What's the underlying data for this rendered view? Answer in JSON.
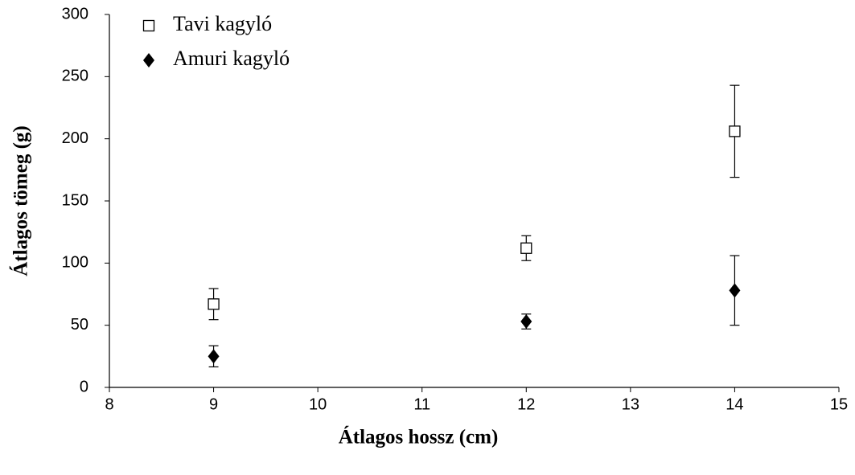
{
  "chart_data": {
    "type": "scatter",
    "x_label": "Átlagos hossz (cm)",
    "y_label": "Átlagos tömeg (g)",
    "xlim": [
      8,
      15
    ],
    "xticks": [
      8,
      9,
      10,
      11,
      12,
      13,
      14,
      15
    ],
    "ylim": [
      0,
      300
    ],
    "yticks": [
      0,
      50,
      100,
      150,
      200,
      250,
      300
    ],
    "legend": "upper left",
    "series": [
      {
        "name": "Tavi kagyló",
        "color": "#000000",
        "marker": "open-square",
        "x": [
          9,
          12,
          14
        ],
        "values": [
          67,
          112,
          206
        ],
        "errors": [
          12.5,
          10,
          37
        ]
      },
      {
        "name": "Amuri kagyló",
        "color": "#000000",
        "marker": "filled-diamond",
        "x": [
          9,
          12,
          14
        ],
        "values": [
          25,
          53,
          78
        ],
        "errors": [
          8.5,
          6,
          28
        ]
      }
    ]
  }
}
